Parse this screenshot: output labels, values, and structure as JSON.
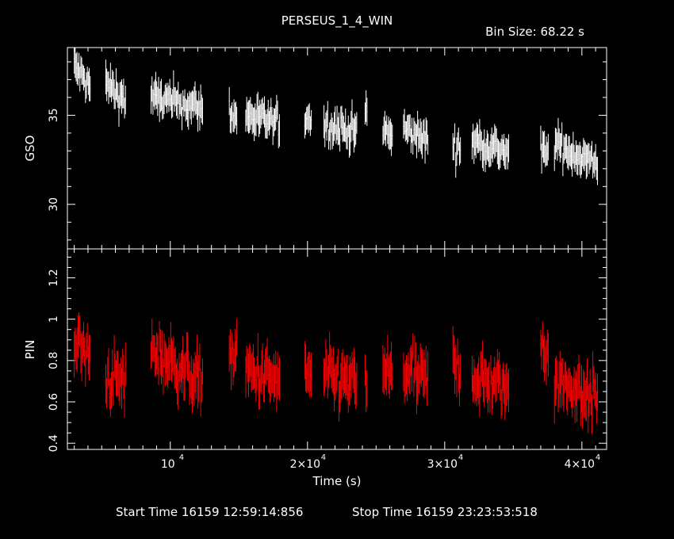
{
  "title": "PERSEUS_1_4_WIN",
  "bin_size": "Bin Size: 68.22 s",
  "start_time": "Start Time 16159 12:59:14:856",
  "stop_time": "Stop Time 16159 23:23:53:518",
  "x_axis": {
    "label": "Time (s)",
    "ticks": [
      {
        "value": 10000,
        "mantissa": "",
        "exp": "4"
      },
      {
        "value": 20000,
        "mantissa": "2×",
        "exp": "4"
      },
      {
        "value": 30000,
        "mantissa": "3×",
        "exp": "4"
      },
      {
        "value": 40000,
        "mantissa": "4×",
        "exp": "4"
      }
    ],
    "tick_base": "10",
    "range": [
      2500,
      41800
    ]
  },
  "colors": {
    "background": "#000000",
    "axes": "#ffffff",
    "gso": "#ffffff",
    "pin": "#ff0000"
  },
  "chart_data": [
    {
      "type": "scatter",
      "style": "error-bar light curve",
      "ylabel": "GSO",
      "ylim": [
        27.5,
        38.8
      ],
      "yticks": [
        {
          "value": 30,
          "label": "30"
        },
        {
          "value": 35,
          "label": "35"
        }
      ],
      "series": [
        {
          "segments": [
            {
              "x": [
                3000,
                4200
              ],
              "y": [
                37.8,
                36.5
              ]
            },
            {
              "x": [
                5300,
                6800
              ],
              "y": [
                36.8,
                35.8
              ]
            },
            {
              "x": [
                8600,
                12400
              ],
              "y": [
                36.0,
                35.4
              ]
            },
            {
              "x": [
                14300,
                14900
              ],
              "y": [
                35.3,
                34.7
              ]
            },
            {
              "x": [
                15500,
                18000
              ],
              "y": [
                35.0,
                34.5
              ]
            },
            {
              "x": [
                19800,
                20300
              ],
              "y": [
                34.9,
                34.8
              ]
            },
            {
              "x": [
                21200,
                23600
              ],
              "y": [
                34.5,
                34.1
              ]
            },
            {
              "x": [
                24200,
                24400
              ],
              "y": [
                35.2,
                35.0
              ]
            },
            {
              "x": [
                25500,
                26200
              ],
              "y": [
                34.2,
                33.8
              ]
            },
            {
              "x": [
                27000,
                28800
              ],
              "y": [
                34.2,
                33.6
              ]
            },
            {
              "x": [
                30600,
                31200
              ],
              "y": [
                33.3,
                33.1
              ]
            },
            {
              "x": [
                32000,
                34700
              ],
              "y": [
                33.6,
                32.9
              ]
            },
            {
              "x": [
                37000,
                37600
              ],
              "y": [
                33.0,
                32.7
              ]
            },
            {
              "x": [
                38000,
                41200
              ],
              "y": [
                33.4,
                32.2
              ]
            }
          ]
        }
      ]
    },
    {
      "type": "scatter",
      "style": "error-bar light curve",
      "ylabel": "PIN",
      "ylim": [
        0.37,
        1.34
      ],
      "yticks": [
        {
          "value": 0.4,
          "label": "0.4"
        },
        {
          "value": 0.6,
          "label": "0.6"
        },
        {
          "value": 0.8,
          "label": "0.8"
        },
        {
          "value": 1.0,
          "label": "1"
        },
        {
          "value": 1.2,
          "label": "1.2"
        }
      ],
      "series": [
        {
          "segments": [
            {
              "x": [
                3000,
                4200
              ],
              "y": [
                0.9,
                0.8
              ]
            },
            {
              "x": [
                5300,
                6800
              ],
              "y": [
                0.72,
                0.7
              ]
            },
            {
              "x": [
                8600,
                12400
              ],
              "y": [
                0.85,
                0.7
              ]
            },
            {
              "x": [
                14300,
                14900
              ],
              "y": [
                0.85,
                0.8
              ]
            },
            {
              "x": [
                15500,
                18000
              ],
              "y": [
                0.75,
                0.7
              ]
            },
            {
              "x": [
                19800,
                20300
              ],
              "y": [
                0.75,
                0.72
              ]
            },
            {
              "x": [
                21200,
                23600
              ],
              "y": [
                0.72,
                0.68
              ]
            },
            {
              "x": [
                24200,
                24400
              ],
              "y": [
                0.7,
                0.7
              ]
            },
            {
              "x": [
                25500,
                26200
              ],
              "y": [
                0.75,
                0.72
              ]
            },
            {
              "x": [
                27000,
                28800
              ],
              "y": [
                0.75,
                0.7
              ]
            },
            {
              "x": [
                30600,
                31200
              ],
              "y": [
                0.8,
                0.75
              ]
            },
            {
              "x": [
                32000,
                34700
              ],
              "y": [
                0.72,
                0.66
              ]
            },
            {
              "x": [
                37000,
                37600
              ],
              "y": [
                0.88,
                0.85
              ]
            },
            {
              "x": [
                38000,
                41200
              ],
              "y": [
                0.7,
                0.62
              ]
            }
          ]
        }
      ]
    }
  ]
}
